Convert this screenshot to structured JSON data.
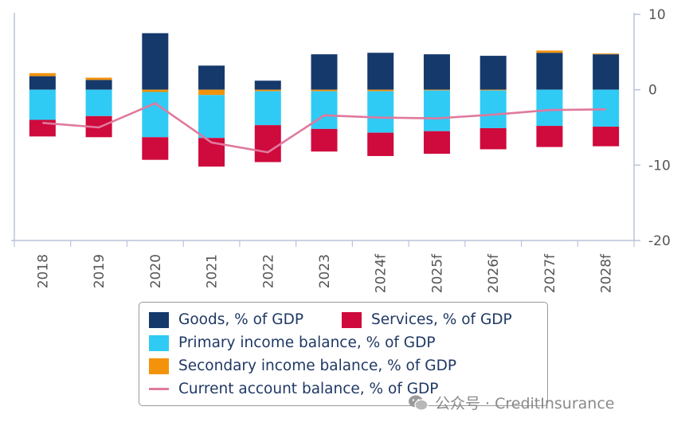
{
  "chart_data": {
    "type": "bar",
    "stacked": true,
    "categories": [
      "2018",
      "2019",
      "2020",
      "2021",
      "2022",
      "2023",
      "2024f",
      "2025f",
      "2026f",
      "2027f",
      "2028f"
    ],
    "series": [
      {
        "name": "Goods, % of GDP",
        "kind": "bar",
        "color": "#15396b",
        "values": [
          1.8,
          1.3,
          7.5,
          3.2,
          1.2,
          4.7,
          4.9,
          4.7,
          4.5,
          4.9,
          4.7
        ]
      },
      {
        "name": "Services, % of GDP",
        "kind": "bar",
        "color": "#cf0a3c",
        "values": [
          -2.2,
          -2.8,
          -3.0,
          -3.8,
          -4.9,
          -3.0,
          -3.1,
          -3.0,
          -2.8,
          -2.8,
          -2.6
        ]
      },
      {
        "name": "Primary income balance, % of GDP",
        "kind": "bar",
        "color": "#30cbf5",
        "values": [
          -4.0,
          -3.5,
          -6.0,
          -5.7,
          -4.5,
          -5.0,
          -5.5,
          -5.4,
          -5.0,
          -4.8,
          -4.9
        ]
      },
      {
        "name": "Secondary income balance, % of GDP",
        "kind": "bar",
        "color": "#f3930b",
        "values": [
          0.4,
          0.3,
          -0.3,
          -0.7,
          -0.2,
          -0.2,
          -0.2,
          -0.1,
          -0.1,
          0.3,
          0.1
        ]
      },
      {
        "name": "Current account balance, % of GDP",
        "kind": "line",
        "color": "#e0799d",
        "values": [
          -4.4,
          -5.0,
          -1.8,
          -7.0,
          -8.3,
          -3.4,
          -3.7,
          -3.8,
          -3.3,
          -2.7,
          -2.6
        ]
      }
    ],
    "yaxis": {
      "position": "right",
      "ylim": [
        -20,
        10
      ],
      "ticks": [
        "10",
        "0",
        "-10",
        "-20"
      ]
    },
    "xlabel": "",
    "ylabel": "",
    "grid": false,
    "legend": "bottom"
  },
  "legend": {
    "goods": "Goods, % of GDP",
    "services": "Services, % of GDP",
    "primary": "Primary income balance, % of GDP",
    "secondary": "Secondary income balance, % of GDP",
    "current": "Current account balance, % of GDP"
  },
  "colors": {
    "goods": "#15396b",
    "services": "#cf0a3c",
    "primary": "#30cbf5",
    "secondary": "#f3930b",
    "current": "#e0799d",
    "axis": "#b9c3d8"
  },
  "watermark": {
    "text": "公众号 · CreditInsurance",
    "icon": "wechat-icon"
  }
}
